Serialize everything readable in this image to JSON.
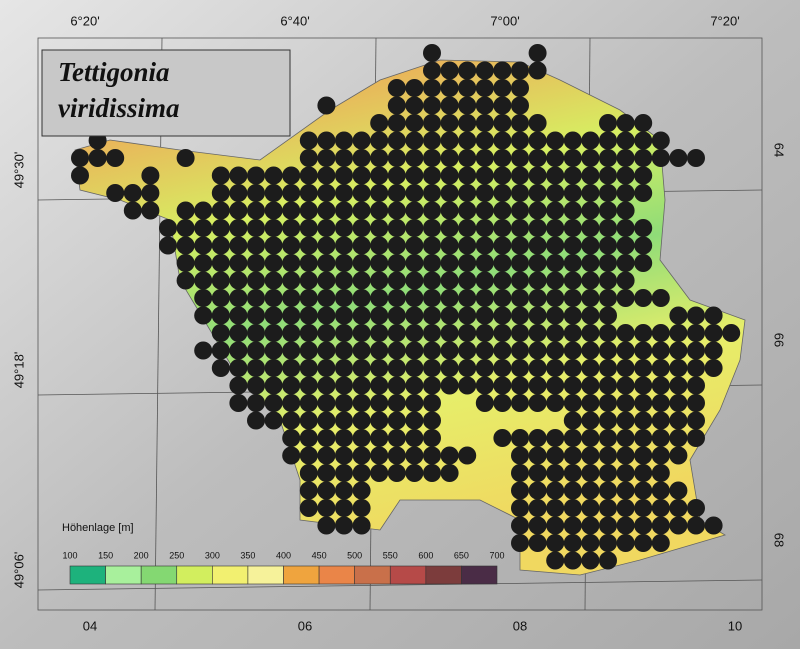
{
  "title": [
    "Tettigonia",
    "viridissima"
  ],
  "top_labels": [
    "6°20'",
    "6°40'",
    "7°00'",
    "7°20'"
  ],
  "left_labels": [
    "49°30'",
    "49°18'",
    "49°06'"
  ],
  "right_labels": [
    "64",
    "66",
    "68"
  ],
  "bottom_labels": [
    "04",
    "06",
    "08",
    "10"
  ],
  "legend": {
    "title": "Höhenlage [m]",
    "labels": [
      100,
      150,
      200,
      250,
      300,
      350,
      400,
      450,
      500,
      550,
      600,
      650,
      700
    ],
    "colors": [
      "#1db27c",
      "#a8f09c",
      "#84d872",
      "#d2ee5e",
      "#f2f070",
      "#f6f29a",
      "#efa43e",
      "#ea8548",
      "#c9704a",
      "#b64a48",
      "#7c3c3c",
      "#4a2c46"
    ]
  }
}
